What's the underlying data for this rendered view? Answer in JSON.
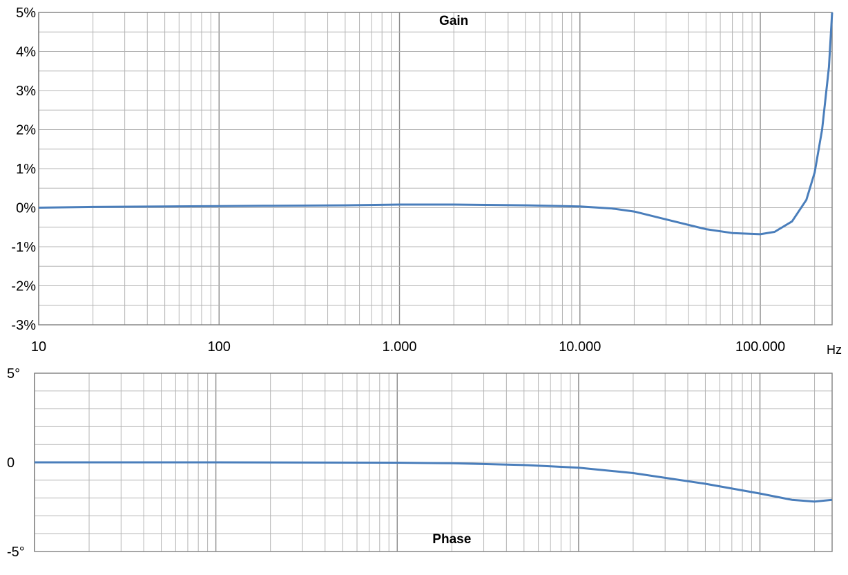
{
  "colors": {
    "series": "#4a7ebb",
    "major_grid": "#8c8c8c",
    "minor_grid": "#b4b4b4",
    "frame": "#808080"
  },
  "x_unit": "Hz",
  "chart_data": [
    {
      "type": "line",
      "title": "Gain",
      "xscale": "log",
      "xlim": [
        10,
        250000
      ],
      "ylim": [
        -3,
        5
      ],
      "grid": true,
      "x_tick_values": [
        10,
        100,
        1000,
        10000,
        100000
      ],
      "x_tick_labels": [
        "10",
        "100",
        "1.000",
        "10.000",
        "100.000"
      ],
      "y_tick_values": [
        -3,
        -2,
        -1,
        0,
        1,
        2,
        3,
        4,
        5
      ],
      "y_tick_labels": [
        "-3%",
        "-2%",
        "-1%",
        "0%",
        "1%",
        "2%",
        "3%",
        "4%",
        "5%"
      ],
      "x": [
        10,
        20,
        50,
        100,
        200,
        500,
        1000,
        2000,
        5000,
        10000,
        15000,
        20000,
        30000,
        50000,
        70000,
        100000,
        120000,
        150000,
        180000,
        200000,
        220000,
        240000,
        250000
      ],
      "y": [
        0.0,
        0.02,
        0.03,
        0.04,
        0.05,
        0.06,
        0.08,
        0.08,
        0.06,
        0.03,
        -0.02,
        -0.1,
        -0.3,
        -0.55,
        -0.65,
        -0.68,
        -0.62,
        -0.35,
        0.2,
        0.9,
        2.0,
        3.6,
        5.0
      ]
    },
    {
      "type": "line",
      "title": "Phase",
      "xscale": "log",
      "xlim": [
        10,
        250000
      ],
      "ylim": [
        -5,
        5
      ],
      "grid": true,
      "y_tick_values": [
        -5,
        0,
        5
      ],
      "y_tick_labels": [
        "-5°",
        "0",
        "5°"
      ],
      "x": [
        10,
        100,
        1000,
        2000,
        5000,
        10000,
        20000,
        50000,
        100000,
        150000,
        200000,
        250000
      ],
      "y": [
        0.0,
        0.0,
        -0.02,
        -0.05,
        -0.15,
        -0.3,
        -0.6,
        -1.2,
        -1.75,
        -2.1,
        -2.2,
        -2.1
      ]
    }
  ]
}
